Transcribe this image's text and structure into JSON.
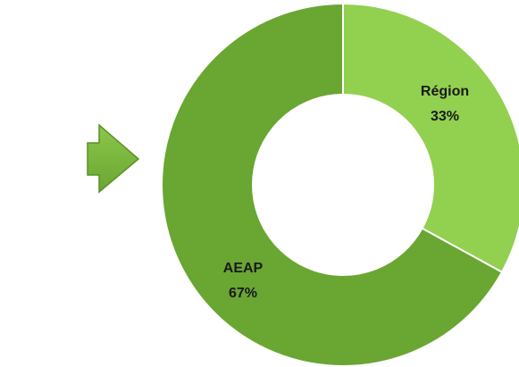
{
  "chart_data": {
    "type": "donut",
    "categories": [
      "Région",
      "AEAP"
    ],
    "values": [
      33,
      67
    ],
    "value_labels": [
      "33%",
      "67%"
    ],
    "colors": [
      "#92d050",
      "#6aa632"
    ]
  }
}
